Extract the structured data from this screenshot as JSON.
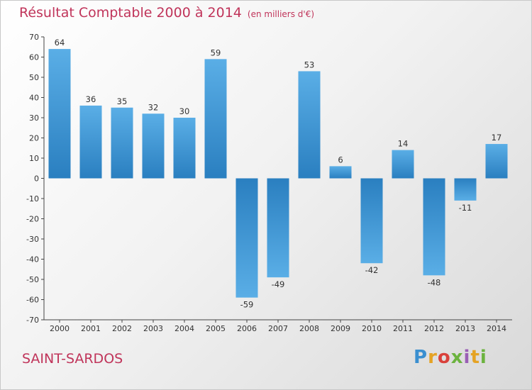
{
  "title": "Résultat Comptable 2000 à 2014",
  "subtitle": "(en milliers d'€)",
  "place": "SAINT-SARDOS",
  "logo": {
    "p": "P",
    "r": "r",
    "o": "o",
    "x": "x",
    "i": "i",
    "t": "t",
    "i2": "i"
  },
  "colors": {
    "bar_light": "#5aaee6",
    "bar_dark": "#2a7fc0",
    "title": "#c0345a"
  },
  "chart_data": {
    "type": "bar",
    "categories": [
      "2000",
      "2001",
      "2002",
      "2003",
      "2004",
      "2005",
      "2006",
      "2007",
      "2008",
      "2009",
      "2010",
      "2011",
      "2012",
      "2013",
      "2014"
    ],
    "values": [
      64,
      36,
      35,
      32,
      30,
      59,
      -59,
      -49,
      53,
      6,
      -42,
      14,
      -48,
      -11,
      17
    ],
    "ylim": [
      -70,
      70
    ],
    "yticks": [
      70,
      60,
      50,
      40,
      30,
      20,
      10,
      0,
      -10,
      -20,
      -30,
      -40,
      -50,
      -60,
      -70
    ],
    "xlabel": "",
    "ylabel": "",
    "grid": false
  }
}
